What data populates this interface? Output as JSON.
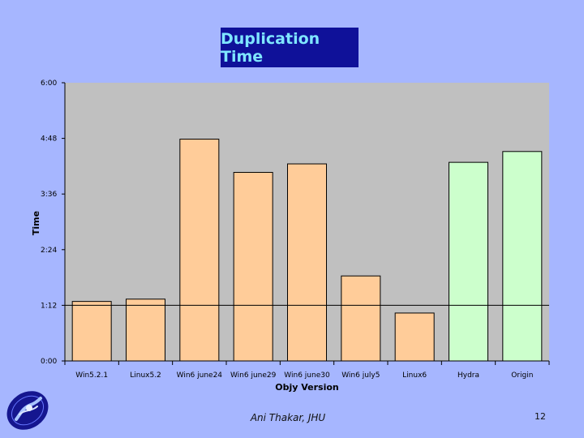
{
  "slide": {
    "footer_author": "Ani Thakar, JHU",
    "page_number": "12",
    "background_color": "#a6b6ff"
  },
  "logo": {
    "icon": "sdss-galaxy-logo-icon"
  },
  "chart_data": {
    "type": "bar",
    "title": "Duplication Time",
    "xlabel": "Objy Version",
    "ylabel": "Time",
    "y_unit": "minutes (h:mm)",
    "ylim": [
      0,
      360
    ],
    "yticks": [
      {
        "value": 0,
        "label": "0:00"
      },
      {
        "value": 72,
        "label": "1:12"
      },
      {
        "value": 144,
        "label": "2:24"
      },
      {
        "value": 216,
        "label": "3:36"
      },
      {
        "value": 288,
        "label": "4:48"
      },
      {
        "value": 360,
        "label": "6:00"
      }
    ],
    "categories": [
      "Win5.2.1",
      "Linux5.2",
      "Win6 june24",
      "Win6 june29",
      "Win6 june30",
      "Win6 july5",
      "Linux6",
      "Hydra",
      "Origin"
    ],
    "values": [
      77,
      80,
      287,
      244,
      255,
      110,
      62,
      257,
      271
    ],
    "colors": [
      "#ffcc99",
      "#ffcc99",
      "#ffcc99",
      "#ffcc99",
      "#ffcc99",
      "#ffcc99",
      "#ffcc99",
      "#ccffcc",
      "#ccffcc"
    ],
    "reference_line": 72,
    "grid": false,
    "plot_background": "#c0c0c0"
  }
}
